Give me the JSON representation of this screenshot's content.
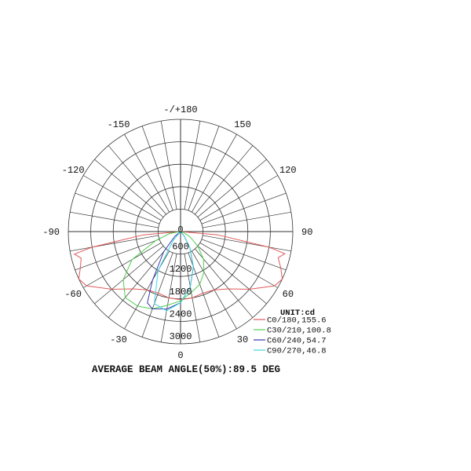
{
  "chart_data": {
    "type": "polar",
    "title": "",
    "unit_label": "UNIT:cd",
    "footer": "AVERAGE BEAM ANGLE(50%):89.5 DEG",
    "radial_range": [
      0,
      3000
    ],
    "radial_ticks": [
      "0",
      "600",
      "1200",
      "1800",
      "2400",
      "3000"
    ],
    "radial_tick_values": [
      0,
      600,
      1200,
      1800,
      2400,
      3000
    ],
    "angle_ticks": [
      {
        "label": "-/+180",
        "angle": 180
      },
      {
        "label": "150",
        "angle": 150
      },
      {
        "label": "-150",
        "angle": -150
      },
      {
        "label": "120",
        "angle": 120
      },
      {
        "label": "-120",
        "angle": -120
      },
      {
        "label": "90",
        "angle": 90
      },
      {
        "label": "-90",
        "angle": -90
      },
      {
        "label": "60",
        "angle": 60
      },
      {
        "label": "-60",
        "angle": -60
      },
      {
        "label": "30",
        "angle": 30
      },
      {
        "label": "-30",
        "angle": -30
      },
      {
        "label": "0",
        "angle": 0
      }
    ],
    "angle_grid_step_deg": 10,
    "grid": true,
    "legend_position": "bottom-right",
    "series": [
      {
        "name": "C0/180,155.6",
        "color": "#e05a5a",
        "angles": [
          -90,
          -85,
          -80,
          -78,
          -75,
          -70,
          -65,
          -60,
          -50,
          -40,
          -30,
          -20,
          -10,
          0,
          10,
          20,
          30,
          40,
          50,
          60,
          65,
          70,
          75,
          78,
          80,
          85,
          90
        ],
        "values": [
          0,
          1000,
          2400,
          2900,
          2750,
          2850,
          3000,
          2900,
          2400,
          2000,
          1800,
          1750,
          1800,
          1820,
          1800,
          1750,
          1800,
          2000,
          2400,
          2900,
          3000,
          2850,
          2700,
          2850,
          2400,
          1000,
          0
        ]
      },
      {
        "name": "C30/210,100.8",
        "color": "#4fcf4f",
        "angles": [
          -90,
          -80,
          -70,
          -60,
          -50,
          -40,
          -30,
          -20,
          -10,
          0,
          10,
          20,
          30,
          40,
          50,
          60,
          70,
          80,
          90
        ],
        "values": [
          0,
          300,
          700,
          1500,
          2000,
          2300,
          2300,
          2200,
          2000,
          1850,
          1650,
          1500,
          1250,
          950,
          600,
          300,
          100,
          0,
          0
        ]
      },
      {
        "name": "C60/240,54.7",
        "color": "#3a3ab0",
        "angles": [
          -90,
          -50,
          -40,
          -30,
          -25,
          -20,
          -10,
          0,
          10,
          20,
          30,
          40,
          50,
          90
        ],
        "values": [
          0,
          200,
          700,
          1500,
          2100,
          2200,
          2100,
          1900,
          1500,
          1000,
          500,
          150,
          0,
          0
        ]
      },
      {
        "name": "C90/270,46.8",
        "color": "#3fd6e0",
        "angles": [
          -90,
          -50,
          -40,
          -30,
          -20,
          -10,
          0,
          10,
          20,
          30,
          40,
          50,
          90
        ],
        "values": [
          0,
          0,
          300,
          1200,
          2050,
          2150,
          1900,
          1500,
          1000,
          500,
          150,
          0,
          0
        ]
      }
    ]
  }
}
